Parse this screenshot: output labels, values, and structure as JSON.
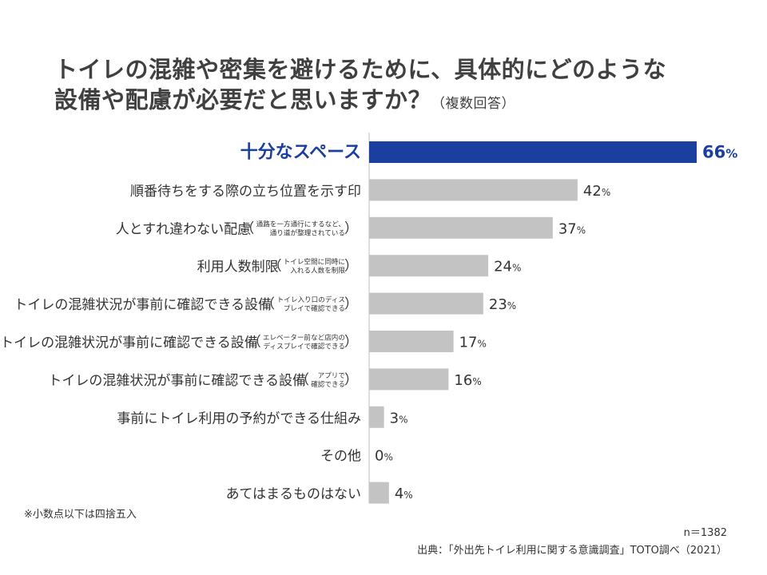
{
  "title": {
    "line1": "トイレの混雑や密集を避けるために、具体的にどのような",
    "line2": "設備や配慮が必要だと思いますか？",
    "note": "（複数回答）"
  },
  "colors": {
    "highlight": "#1a3f9e",
    "bar": "#c3c3c3",
    "axis": "#bdbdbd",
    "label": "#333333"
  },
  "chart_data": {
    "type": "bar",
    "orientation": "horizontal",
    "categories": [
      {
        "label": "十分なスペース",
        "note": "",
        "highlight": true
      },
      {
        "label": "順番待ちをする際の立ち位置を示す印",
        "note": ""
      },
      {
        "label": "人とすれ違わない配慮",
        "note": "通路を一方通行にするなど、通り道が整理されている"
      },
      {
        "label": "利用人数制限",
        "note": "トイレ空間に同時に入れる人数を制限"
      },
      {
        "label": "トイレの混雑状況が事前に確認できる設備",
        "note": "トイレ入り口のディスプレイで確認できる"
      },
      {
        "label": "トイレの混雑状況が事前に確認できる設備",
        "note": "エレベーター前など店内のディスプレイで確認できる"
      },
      {
        "label": "トイレの混雑状況が事前に確認できる設備",
        "note": "アプリで確認できる"
      },
      {
        "label": "事前にトイレ利用の予約ができる仕組み",
        "note": ""
      },
      {
        "label": "その他",
        "note": ""
      },
      {
        "label": "あてはまるものはない",
        "note": ""
      }
    ],
    "values": [
      66,
      42,
      37,
      24,
      23,
      17,
      16,
      3,
      0,
      4
    ],
    "unit": "%",
    "xlim": [
      0,
      66
    ]
  },
  "footnote": "※小数点以下は四捨五入",
  "sample": "n＝1382",
  "source": "出典：「外出先トイレ利用に関する意識調査」TOTO調べ（2021）"
}
